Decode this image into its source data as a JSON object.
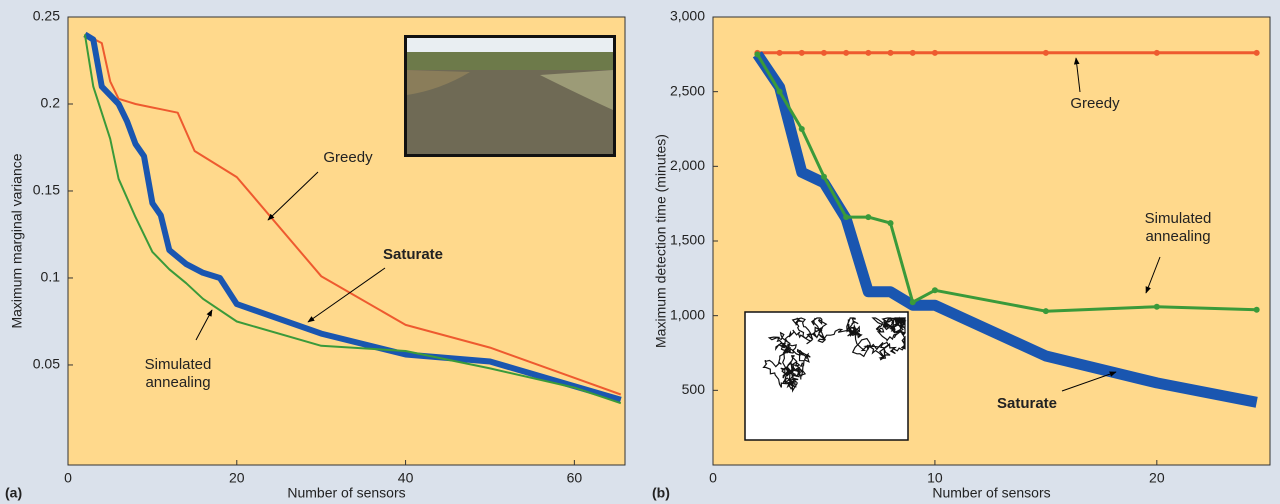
{
  "chart_data": [
    {
      "type": "line",
      "panel_label": "(a)",
      "xlabel": "Number of sensors",
      "ylabel": "Maximum marginal variance",
      "xlim": [
        0,
        66
      ],
      "ylim": [
        -0.0075,
        0.25
      ],
      "xticks": [
        0,
        20,
        40,
        60
      ],
      "yticks": [
        0.05,
        0.1,
        0.15,
        0.2,
        0.25
      ],
      "series": [
        {
          "name": "Greedy",
          "color": "#ee5a2f",
          "width": 2,
          "markers": false,
          "x": [
            2,
            4,
            5,
            6,
            8,
            10,
            11,
            13,
            15,
            20,
            30,
            40,
            50,
            65.5
          ],
          "values": [
            0.24,
            0.235,
            0.213,
            0.203,
            0.2,
            0.198,
            0.197,
            0.195,
            0.173,
            0.158,
            0.101,
            0.073,
            0.06,
            0.033
          ]
        },
        {
          "name": "Saturate",
          "color": "#1a56b0",
          "width": 6,
          "markers": false,
          "x": [
            2,
            3,
            4,
            6,
            7,
            8,
            9,
            10,
            11,
            12,
            14,
            16,
            18,
            20,
            30,
            40,
            50,
            65.5
          ],
          "values": [
            0.24,
            0.237,
            0.21,
            0.2,
            0.19,
            0.177,
            0.17,
            0.143,
            0.136,
            0.116,
            0.108,
            0.103,
            0.1,
            0.085,
            0.068,
            0.056,
            0.052,
            0.03
          ]
        },
        {
          "name": "Simulated annealing",
          "color": "#3a9a3a",
          "width": 2,
          "markers": false,
          "x": [
            2,
            3,
            5,
            6,
            8,
            10,
            12,
            14,
            16,
            20,
            30,
            40,
            50,
            60,
            65.5
          ],
          "values": [
            0.24,
            0.21,
            0.18,
            0.157,
            0.135,
            0.115,
            0.105,
            0.097,
            0.088,
            0.075,
            0.061,
            0.058,
            0.048,
            0.037,
            0.028
          ]
        }
      ]
    },
    {
      "type": "line",
      "panel_label": "(b)",
      "xlabel": "Number of sensors",
      "ylabel": "Maximum detection time (minutes)",
      "xlim": [
        0,
        25.1
      ],
      "ylim": [
        0,
        3000
      ],
      "xticks": [
        0,
        10,
        20
      ],
      "yticks": [
        500,
        {
          "value": 1000,
          "label": "1,000"
        },
        {
          "value": 1500,
          "label": "1,500"
        },
        {
          "value": 2000,
          "label": "2,000"
        },
        {
          "value": 2500,
          "label": "2,500"
        },
        {
          "value": 3000,
          "label": "3,000"
        }
      ],
      "series": [
        {
          "name": "Greedy",
          "color": "#ee5a2f",
          "width": 3,
          "markers": true,
          "x": [
            2,
            3,
            4,
            5,
            6,
            7,
            8,
            9,
            10,
            15,
            20,
            24.5
          ],
          "values": [
            2760,
            2760,
            2760,
            2760,
            2760,
            2760,
            2760,
            2760,
            2760,
            2760,
            2760,
            2760
          ]
        },
        {
          "name": "Saturate",
          "color": "#1a56b0",
          "width": 11,
          "markers": false,
          "x": [
            2,
            3,
            4,
            5,
            6,
            7,
            8,
            9,
            10,
            15,
            20,
            24.5
          ],
          "values": [
            2750,
            2530,
            1960,
            1890,
            1650,
            1160,
            1160,
            1070,
            1070,
            730,
            550,
            420
          ]
        },
        {
          "name": "Simulated annealing",
          "color": "#3a9a3a",
          "width": 3,
          "markers": true,
          "x": [
            2,
            3,
            4,
            5,
            6,
            7,
            8,
            9,
            10,
            15,
            20,
            24.5
          ],
          "values": [
            2750,
            2500,
            2250,
            1930,
            1660,
            1660,
            1620,
            1090,
            1170,
            1030,
            1060,
            1040
          ]
        }
      ]
    }
  ]
}
